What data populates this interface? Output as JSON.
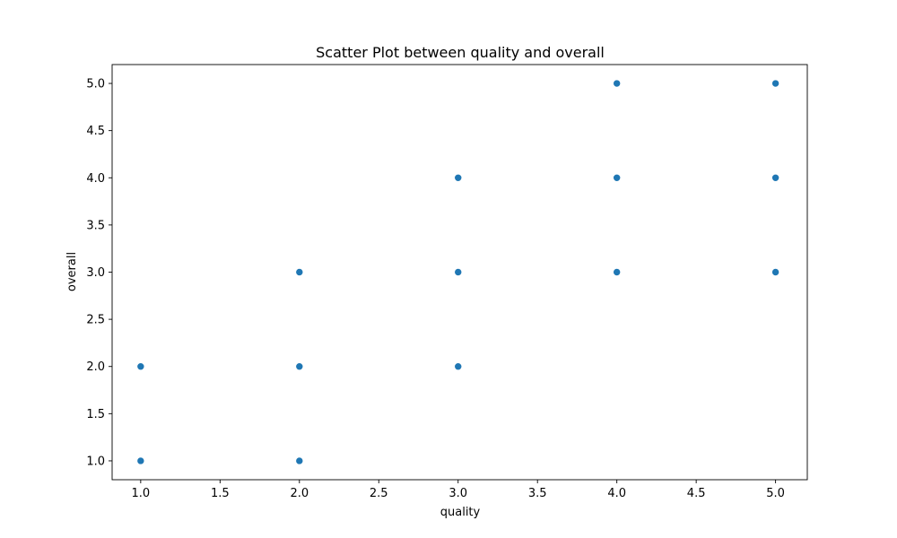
{
  "chart_data": {
    "type": "scatter",
    "title": "Scatter Plot between quality and overall",
    "xlabel": "quality",
    "ylabel": "overall",
    "xlim": [
      0.82,
      5.2
    ],
    "ylim": [
      0.8,
      5.2
    ],
    "x_ticks": [
      1.0,
      1.5,
      2.0,
      2.5,
      3.0,
      3.5,
      4.0,
      4.5,
      5.0
    ],
    "x_tick_labels": [
      "1.0",
      "1.5",
      "2.0",
      "2.5",
      "3.0",
      "3.5",
      "4.0",
      "4.5",
      "5.0"
    ],
    "y_ticks": [
      1.0,
      1.5,
      2.0,
      2.5,
      3.0,
      3.5,
      4.0,
      4.5,
      5.0
    ],
    "y_tick_labels": [
      "1.0",
      "1.5",
      "2.0",
      "2.5",
      "3.0",
      "3.5",
      "4.0",
      "4.5",
      "5.0"
    ],
    "grid": false,
    "legend": false,
    "point_color": "#1f77b4",
    "points": [
      {
        "x": 1.0,
        "y": 1.0
      },
      {
        "x": 1.0,
        "y": 2.0
      },
      {
        "x": 2.0,
        "y": 1.0
      },
      {
        "x": 2.0,
        "y": 2.0
      },
      {
        "x": 2.0,
        "y": 3.0
      },
      {
        "x": 3.0,
        "y": 2.0
      },
      {
        "x": 3.0,
        "y": 3.0
      },
      {
        "x": 3.0,
        "y": 4.0
      },
      {
        "x": 4.0,
        "y": 3.0
      },
      {
        "x": 4.0,
        "y": 4.0
      },
      {
        "x": 4.0,
        "y": 5.0
      },
      {
        "x": 5.0,
        "y": 3.0
      },
      {
        "x": 5.0,
        "y": 4.0
      },
      {
        "x": 5.0,
        "y": 5.0
      }
    ]
  }
}
